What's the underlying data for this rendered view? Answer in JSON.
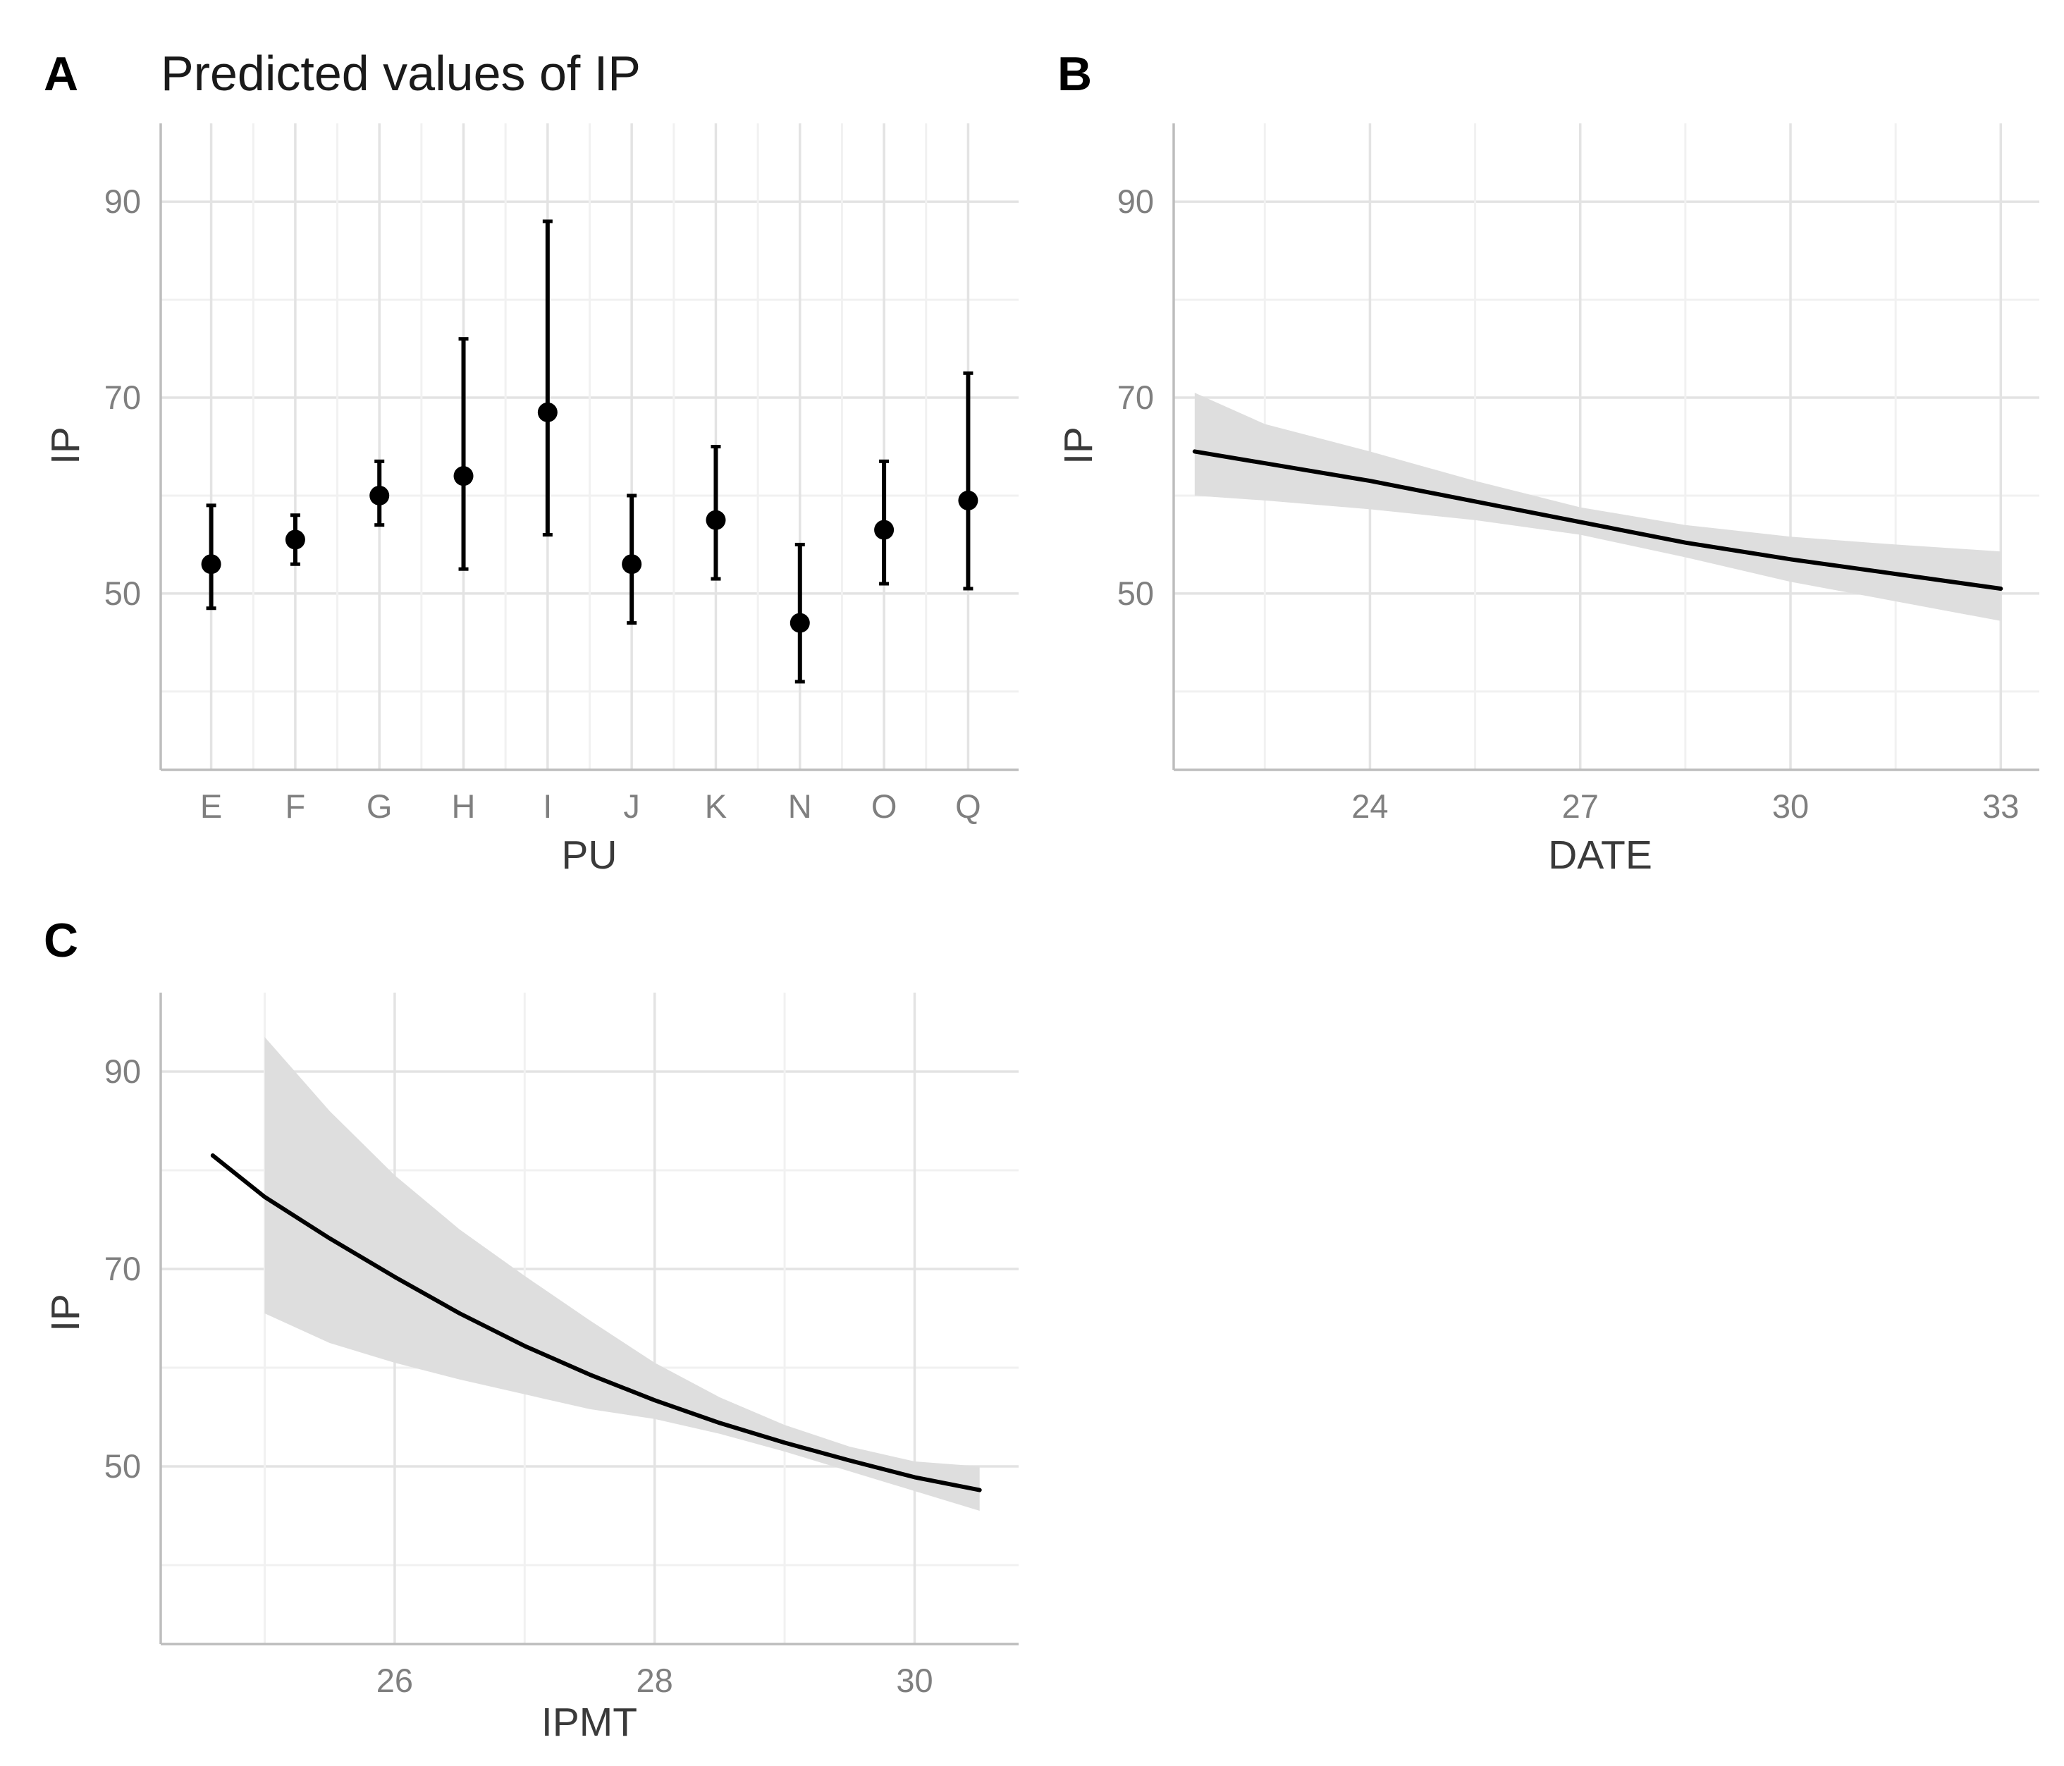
{
  "colors": {
    "grid_major": "#e3e3e3",
    "grid_minor": "#f1f1f1",
    "axis": "#bdbdbd",
    "line": "#000000",
    "ribbon": "#dedede"
  },
  "chart_data": [
    {
      "panel": "A",
      "title": "Predicted values of IP",
      "type": "errorbar",
      "xlabel": "PU",
      "ylabel": "IP",
      "categories": [
        "E",
        "F",
        "G",
        "H",
        "I",
        "J",
        "K",
        "N",
        "O",
        "Q"
      ],
      "values": [
        53,
        55.5,
        60,
        62,
        68.5,
        53,
        57.5,
        47,
        56.5,
        59.5
      ],
      "lower": [
        48.5,
        53,
        57,
        52.5,
        56,
        47,
        51.5,
        41,
        51,
        50.5
      ],
      "upper": [
        59,
        58,
        63.5,
        76,
        88,
        60,
        65,
        55,
        63.5,
        72.5
      ],
      "yticks": [
        50,
        70,
        90
      ],
      "ylim": [
        32,
        98
      ],
      "grid": true
    },
    {
      "panel": "B",
      "title": "",
      "type": "line",
      "xlabel": "DATE",
      "ylabel": "IP",
      "x": [
        21.5,
        22.5,
        24,
        25.5,
        27,
        28.5,
        30,
        31.5,
        33
      ],
      "y": [
        64.5,
        63.3,
        61.5,
        59.4,
        57.3,
        55.2,
        53.5,
        52.0,
        50.5
      ],
      "ci_lower": [
        60,
        59.5,
        58.6,
        57.5,
        56,
        53.7,
        51.2,
        49.2,
        47.2
      ],
      "ci_upper": [
        70.5,
        67.3,
        64.5,
        61.5,
        58.8,
        57,
        55.8,
        55,
        54.3
      ],
      "xticks": [
        24,
        27,
        30,
        33
      ],
      "yticks": [
        50,
        70,
        90
      ],
      "xlim": [
        21.2,
        33.55
      ],
      "ylim": [
        32,
        98
      ],
      "grid": true
    },
    {
      "panel": "C",
      "title": "",
      "type": "line",
      "xlabel": "IPMT",
      "ylabel": "IP",
      "x": [
        24.6,
        25,
        25.5,
        26,
        26.5,
        27,
        27.5,
        28,
        28.5,
        29,
        29.5,
        30,
        30.5
      ],
      "y": [
        81.5,
        77.3,
        73.1,
        69.2,
        65.5,
        62.2,
        59.3,
        56.7,
        54.4,
        52.4,
        50.6,
        48.9,
        47.6
      ],
      "ci_lower": [
        null,
        65.5,
        62.5,
        60.5,
        58.8,
        57.3,
        55.8,
        54.8,
        53.3,
        51.5,
        49.5,
        47.5,
        45.5
      ],
      "ci_upper": [
        null,
        93.5,
        86,
        79.5,
        74,
        69.3,
        64.8,
        60.5,
        57,
        54.2,
        52,
        50.5,
        50
      ],
      "xticks": [
        26,
        28,
        30
      ],
      "yticks": [
        50,
        70,
        90
      ],
      "xlim": [
        24.2,
        30.8
      ],
      "ylim": [
        32,
        98
      ],
      "grid": true
    }
  ]
}
